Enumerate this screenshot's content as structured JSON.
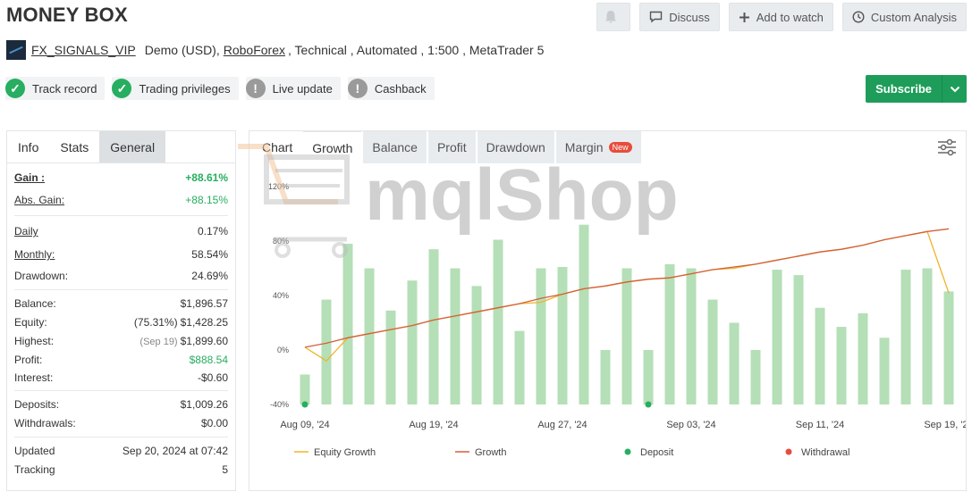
{
  "header": {
    "title": "MONEY BOX",
    "discuss": "Discuss",
    "add_to_watch": "Add to watch",
    "custom_analysis": "Custom Analysis"
  },
  "account": {
    "name": "FX_SIGNALS_VIP",
    "type": "Demo (USD),",
    "broker": "RoboForex",
    "rest": ", Technical , Automated , 1:500 , MetaTrader 5"
  },
  "badges": [
    {
      "label": "Track record",
      "status": "ok"
    },
    {
      "label": "Trading privileges",
      "status": "ok"
    },
    {
      "label": "Live update",
      "status": "warn"
    },
    {
      "label": "Cashback",
      "status": "warn"
    }
  ],
  "subscribe": "Subscribe",
  "left_tabs": {
    "info": "Info",
    "stats": "Stats",
    "general": "General"
  },
  "stats": {
    "gain": {
      "k": "Gain :",
      "v": "+88.61%"
    },
    "abs_gain": {
      "k": "Abs. Gain:",
      "v": "+88.15%"
    },
    "daily": {
      "k": "Daily",
      "v": "0.17%"
    },
    "monthly": {
      "k": "Monthly:",
      "v": "58.54%"
    },
    "drawdown": {
      "k": "Drawdown:",
      "v": "24.69%"
    },
    "balance": {
      "k": "Balance:",
      "v": "$1,896.57"
    },
    "equity": {
      "k": "Equity:",
      "pre": "(75.31%)",
      "v": "$1,428.25"
    },
    "highest": {
      "k": "Highest:",
      "pre": "(Sep 19)",
      "v": "$1,899.60"
    },
    "profit": {
      "k": "Profit:",
      "v": "$888.54"
    },
    "interest": {
      "k": "Interest:",
      "v": "-$0.60"
    },
    "deposits": {
      "k": "Deposits:",
      "v": "$1,009.26"
    },
    "withdrawals": {
      "k": "Withdrawals:",
      "v": "$0.00"
    },
    "updated": {
      "k": "Updated",
      "v": "Sep 20, 2024 at 07:42"
    },
    "tracking": {
      "k": "Tracking",
      "v": "5"
    }
  },
  "right_tabs": {
    "chart": "Chart",
    "growth": "Growth",
    "balance": "Balance",
    "profit": "Profit",
    "drawdown": "Drawdown",
    "margin": "Margin",
    "new": "New"
  },
  "watermark": "mqlShop",
  "colors": {
    "green": "#27ae60",
    "bar": "#b5dfb7",
    "growth": "#d35f3a",
    "equity": "#f0b429",
    "withdrawal": "#e74c3c"
  },
  "chart_data": {
    "type": "bar",
    "ylim": [
      -40,
      120
    ],
    "yticks": [
      "120%",
      "80%",
      "40%",
      "0%",
      "-40%"
    ],
    "ytick_values": [
      120,
      80,
      40,
      0,
      -40
    ],
    "xtick_labels": [
      "Aug 09, '24",
      "Aug 19, '24",
      "Aug 27, '24",
      "Sep 03, '24",
      "Sep 11, '24",
      "Sep 19, '24"
    ],
    "xtick_index": [
      0,
      6,
      12,
      18,
      24,
      30
    ],
    "bars": [
      -18,
      37,
      78,
      60,
      29,
      51,
      74,
      60,
      47,
      81,
      14,
      60,
      61,
      92,
      0,
      60,
      0,
      63,
      60,
      37,
      20,
      0,
      59,
      55,
      31,
      17,
      27,
      9,
      59,
      60,
      43
    ],
    "growth": [
      2,
      5,
      9,
      12,
      15,
      18,
      22,
      25,
      28,
      31,
      34,
      38,
      41,
      45,
      47,
      50,
      52,
      53,
      56,
      59,
      61,
      63,
      66,
      69,
      72,
      74,
      77,
      81,
      84,
      87,
      89
    ],
    "equity": [
      2,
      -8,
      9,
      12,
      15,
      18,
      22,
      25,
      28,
      31,
      34,
      35,
      41,
      45,
      47,
      50,
      52,
      53,
      56,
      59,
      60,
      63,
      66,
      69,
      72,
      74,
      77,
      81,
      84,
      87,
      42
    ],
    "deposits_at": [
      0,
      16
    ],
    "legend": [
      {
        "label": "Equity Growth",
        "kind": "line",
        "color": "#f0b429"
      },
      {
        "label": "Growth",
        "kind": "line",
        "color": "#d35f3a"
      },
      {
        "label": "Deposit",
        "kind": "dot",
        "color": "#27ae60"
      },
      {
        "label": "Withdrawal",
        "kind": "dot",
        "color": "#e74c3c"
      }
    ]
  }
}
